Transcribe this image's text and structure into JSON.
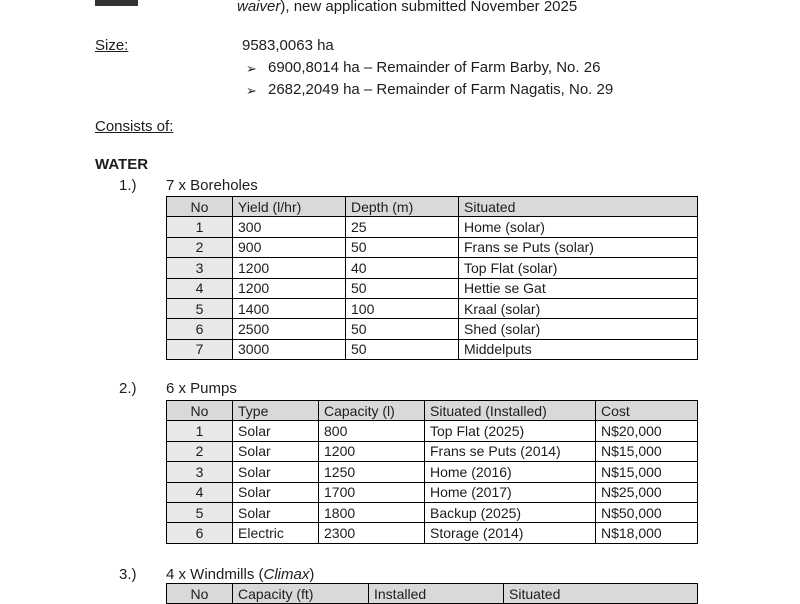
{
  "page": {
    "remnant": "",
    "intro_line": {
      "italic_part": "waiver",
      "rest": "), new application submitted November 2025"
    },
    "size": {
      "label": "Size:",
      "value": "9583,0063 ha",
      "bullets": [
        {
          "arrow": "➢",
          "text": "6900,8014 ha – Remainder of Farm Barby, No. 26"
        },
        {
          "arrow": "➢",
          "text": "2682,2049 ha – Remainder of Farm Nagatis, No. 29"
        }
      ]
    },
    "consists_label": "Consists of:",
    "section_heading": "WATER",
    "list_items": [
      {
        "number": "1.)",
        "prefix": "7 x Boreholes",
        "italic": "",
        "suffix": ""
      },
      {
        "number": "2.)",
        "prefix": "6 x Pumps",
        "italic": "",
        "suffix": ""
      },
      {
        "number": "3.)",
        "prefix": "4 x Windmills (",
        "italic": "Climax",
        "suffix": ")"
      }
    ]
  },
  "tables": {
    "boreholes": {
      "headers": [
        "No",
        "Yield (l/hr)",
        "Depth (m)",
        "Situated"
      ],
      "rows": [
        [
          "1",
          "300",
          "25",
          "Home (solar)"
        ],
        [
          "2",
          "900",
          "50",
          "Frans se Puts (solar)"
        ],
        [
          "3",
          "1200",
          "40",
          "Top Flat (solar)"
        ],
        [
          "4",
          "1200",
          "50",
          "Hettie se Gat"
        ],
        [
          "5",
          "1400",
          "100",
          "Kraal (solar)"
        ],
        [
          "6",
          "2500",
          "50",
          "Shed (solar)"
        ],
        [
          "7",
          "3000",
          "50",
          "Middelputs"
        ]
      ]
    },
    "pumps": {
      "headers": [
        "No",
        "Type",
        "Capacity (l)",
        "Situated (Installed)",
        "Cost"
      ],
      "rows": [
        [
          "1",
          "Solar",
          "800",
          "Top Flat (2025)",
          "N$20,000"
        ],
        [
          "2",
          "Solar",
          "1200",
          "Frans se Puts (2014)",
          "N$15,000"
        ],
        [
          "3",
          "Solar",
          "1250",
          "Home (2016)",
          "N$15,000"
        ],
        [
          "4",
          "Solar",
          "1700",
          "Home (2017)",
          "N$25,000"
        ],
        [
          "5",
          "Solar",
          "1800",
          "Backup (2025)",
          "N$50,000"
        ],
        [
          "6",
          "Electric",
          "2300",
          "Storage (2014)",
          "N$18,000"
        ]
      ]
    },
    "windmills": {
      "headers": [
        "No",
        "Capacity (ft)",
        "Installed",
        "Situated"
      ],
      "rows": []
    }
  }
}
